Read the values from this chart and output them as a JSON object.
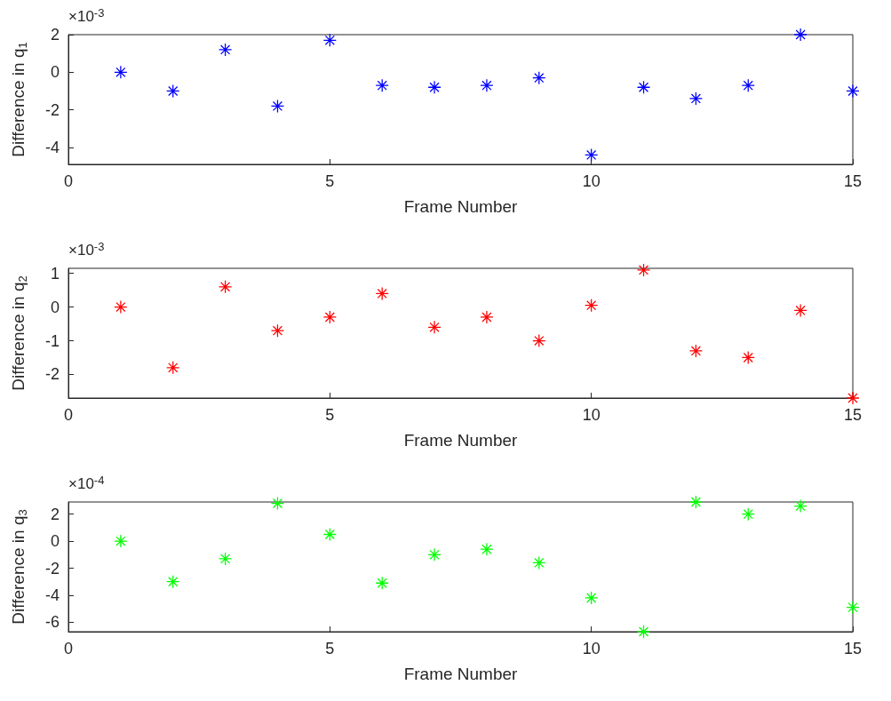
{
  "chart_data": [
    {
      "type": "scatter",
      "xlabel": "Frame Number",
      "ylabel": "Difference in q$_{1}$",
      "annotations": [
        "×10$^{-3}$"
      ],
      "x": [
        1,
        2,
        3,
        4,
        5,
        6,
        7,
        8,
        9,
        10,
        11,
        12,
        13,
        14,
        15
      ],
      "series": [
        {
          "color": "#0000ff",
          "values": [
            0,
            -1.0,
            1.2,
            -1.8,
            1.7,
            -0.7,
            -0.8,
            -0.7,
            -0.3,
            -4.4,
            -0.8,
            -1.4,
            -0.7,
            2.0,
            -1.0
          ]
        }
      ],
      "xlim": [
        0,
        15
      ],
      "xticks": [
        0,
        5,
        10,
        15
      ],
      "ylim": [
        -4.9,
        2.0
      ],
      "yticks": [
        -4,
        -2,
        0,
        2
      ],
      "marker": "star"
    },
    {
      "type": "scatter",
      "xlabel": "Frame Number",
      "ylabel": "Difference in q$_{2}$",
      "annotations": [
        "×10$^{-3}$"
      ],
      "x": [
        1,
        2,
        3,
        4,
        5,
        6,
        7,
        8,
        9,
        10,
        11,
        12,
        13,
        14,
        15
      ],
      "series": [
        {
          "color": "#ff0000",
          "values": [
            0,
            -1.8,
            0.6,
            -0.7,
            -0.3,
            0.4,
            -0.6,
            -0.3,
            -1.0,
            0.05,
            1.1,
            -1.3,
            -1.5,
            -0.1,
            -2.7
          ]
        }
      ],
      "xlim": [
        0,
        15
      ],
      "xticks": [
        0,
        5,
        10,
        15
      ],
      "ylim": [
        -2.7,
        1.15
      ],
      "yticks": [
        -2,
        -1,
        0,
        1
      ],
      "marker": "star"
    },
    {
      "type": "scatter",
      "xlabel": "Frame Number",
      "ylabel": "Difference in q$_{3}$",
      "annotations": [
        "×10$^{-4}$"
      ],
      "x": [
        1,
        2,
        3,
        4,
        5,
        6,
        7,
        8,
        9,
        10,
        11,
        12,
        13,
        14,
        15
      ],
      "series": [
        {
          "color": "#00ff00",
          "values": [
            0,
            -3.0,
            -1.3,
            2.8,
            0.5,
            -3.1,
            -1.0,
            -0.6,
            -1.6,
            -4.2,
            -6.7,
            2.9,
            2.0,
            2.6,
            -4.9
          ]
        }
      ],
      "xlim": [
        0,
        15
      ],
      "xticks": [
        0,
        5,
        10,
        15
      ],
      "ylim": [
        -6.7,
        2.9
      ],
      "yticks": [
        -6,
        -4,
        -2,
        0,
        2
      ],
      "marker": "star"
    }
  ]
}
